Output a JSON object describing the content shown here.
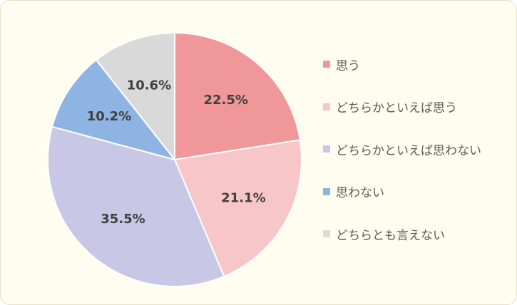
{
  "chart_data": {
    "type": "pie",
    "start_angle_deg": 0,
    "direction": "clockwise",
    "legend_position": "right",
    "slices": [
      {
        "name": "思う",
        "value": 22.5,
        "label": "22.5%",
        "color": "#f09799"
      },
      {
        "name": "どちらかといえば思う",
        "value": 21.1,
        "label": "21.1%",
        "color": "#f7c6c8"
      },
      {
        "name": "どちらかといえば思わない",
        "value": 35.5,
        "label": "35.5%",
        "color": "#c8c8e6"
      },
      {
        "name": "思わない",
        "value": 10.2,
        "label": "10.2%",
        "color": "#8db4e2"
      },
      {
        "name": "どちらとも言えない",
        "value": 10.6,
        "label": "10.6%",
        "color": "#d9d9d9"
      }
    ]
  }
}
